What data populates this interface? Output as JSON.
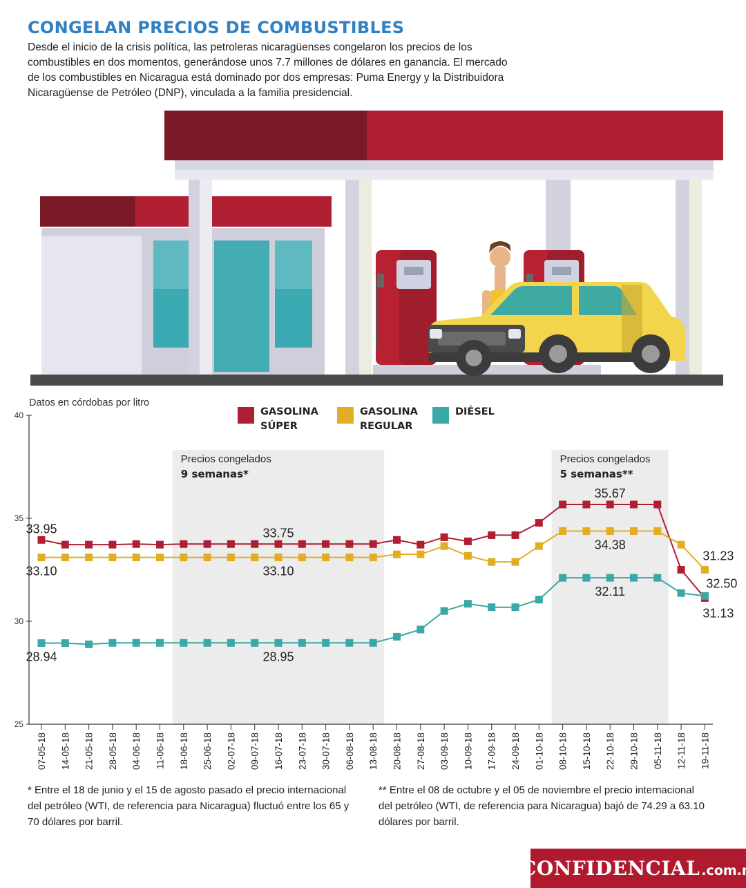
{
  "header": {
    "title": "CONGELAN PRECIOS DE COMBUSTIBLES",
    "intro": "Desde el inicio de la crisis política, las petroleras nicaragüenses congelaron los precios de los combustibles en dos momentos, generándose unos 7.7 millones de dólares en ganancia. El mercado de los combustibles en Nicaragua está dominado por dos empresas: Puma Energy y la Distribuidora Nicaragüense de Petróleo (DNP), vinculada a la familia presidencial."
  },
  "illustration": {
    "subject": "gas-station-scene",
    "colors": {
      "canopy": "#b01e32",
      "canopy_dark": "#7a1a26",
      "pump": "#b82131",
      "car": "#f2d54c",
      "window": "#2aa5ad",
      "ground": "#4a4a4a"
    }
  },
  "chart_data": {
    "type": "line",
    "units_label": "Datos en córdobas por litro",
    "ylim": [
      25,
      40
    ],
    "yticks": [
      25,
      30,
      35,
      40
    ],
    "categories": [
      "07-05-18",
      "14-05-18",
      "21-05-18",
      "28-05-18",
      "04-06-18",
      "11-06-18",
      "18-06-18",
      "25-06-18",
      "02-07-18",
      "09-07-18",
      "16-07-18",
      "23-07-18",
      "30-07-18",
      "06-08-18",
      "13-08-18",
      "20-08-18",
      "27-08-18",
      "03-09-18",
      "10-09-18",
      "17-09-18",
      "24-09-18",
      "01-10-18",
      "08-10-18",
      "15-10-18",
      "22-10-18",
      "29-10-18",
      "05-11-18",
      "12-11-18",
      "19-11-18"
    ],
    "series": [
      {
        "name": "GASOLINA SÚPER",
        "color": "#b01e32",
        "values": [
          33.95,
          33.72,
          33.72,
          33.72,
          33.75,
          33.72,
          33.75,
          33.75,
          33.75,
          33.75,
          33.75,
          33.75,
          33.75,
          33.75,
          33.75,
          33.95,
          33.72,
          34.08,
          33.88,
          34.18,
          34.18,
          34.78,
          35.67,
          35.67,
          35.67,
          35.67,
          35.67,
          32.5,
          31.13
        ]
      },
      {
        "name": "GASOLINA REGULAR",
        "color": "#e2ad22",
        "values": [
          33.1,
          33.1,
          33.1,
          33.1,
          33.1,
          33.1,
          33.1,
          33.1,
          33.1,
          33.1,
          33.1,
          33.1,
          33.1,
          33.1,
          33.1,
          33.25,
          33.25,
          33.65,
          33.18,
          32.88,
          32.88,
          33.65,
          34.38,
          34.38,
          34.38,
          34.38,
          34.38,
          33.72,
          32.5
        ]
      },
      {
        "name": "DIÉSEL",
        "color": "#3aa8a6",
        "values": [
          28.94,
          28.94,
          28.88,
          28.95,
          28.95,
          28.95,
          28.95,
          28.95,
          28.95,
          28.95,
          28.95,
          28.95,
          28.95,
          28.95,
          28.95,
          29.25,
          29.6,
          30.5,
          30.85,
          30.68,
          30.68,
          31.05,
          32.11,
          32.11,
          32.11,
          32.11,
          32.11,
          31.37,
          31.23
        ]
      }
    ],
    "frozen_periods": [
      {
        "start": "18-06-18",
        "end": "13-08-18",
        "label_line1": "Precios congelados",
        "label_line2": "9 semanas*"
      },
      {
        "start": "08-10-18",
        "end": "05-11-18",
        "label_line1": "Precios congelados",
        "label_line2": "5 semanas**"
      }
    ],
    "data_labels": [
      {
        "text": "33.95",
        "series": 0,
        "index": 0,
        "position": "above"
      },
      {
        "text": "33.10",
        "series": 1,
        "index": 0,
        "position": "below"
      },
      {
        "text": "28.94",
        "series": 2,
        "index": 0,
        "position": "below"
      },
      {
        "text": "33.75",
        "series": 0,
        "index": 10,
        "position": "above"
      },
      {
        "text": "33.10",
        "series": 1,
        "index": 10,
        "position": "below"
      },
      {
        "text": "28.95",
        "series": 2,
        "index": 10,
        "position": "below"
      },
      {
        "text": "35.67",
        "series": 0,
        "index": 24,
        "position": "above"
      },
      {
        "text": "34.38",
        "series": 1,
        "index": 24,
        "position": "below"
      },
      {
        "text": "32.11",
        "series": 2,
        "index": 24,
        "position": "below"
      },
      {
        "text": "31.23",
        "series": 2,
        "index": 28,
        "position": "upper-right"
      },
      {
        "text": "32.50",
        "series": 1,
        "index": 28,
        "position": "right"
      },
      {
        "text": "31.13",
        "series": 0,
        "index": 28,
        "position": "lower-right"
      }
    ],
    "grid": false,
    "legend_position": "top"
  },
  "footnotes": {
    "note1": "* Entre el 18 de junio y el 15 de agosto pasado el precio internacional del petróleo (WTI, de referencia para Nicaragua) fluctuó entre los 65 y 70 dólares por barril.",
    "note2": "** Entre el 08 de octubre y el 05 de noviembre el precio internacional del petróleo (WTI, de referencia para Nicaragua) bajó de 74.29 a 63.10 dólares por barril."
  },
  "brand": {
    "name": "CONFIDENCIAL",
    "domain": ".com.ni",
    "color": "#b01a2e"
  }
}
